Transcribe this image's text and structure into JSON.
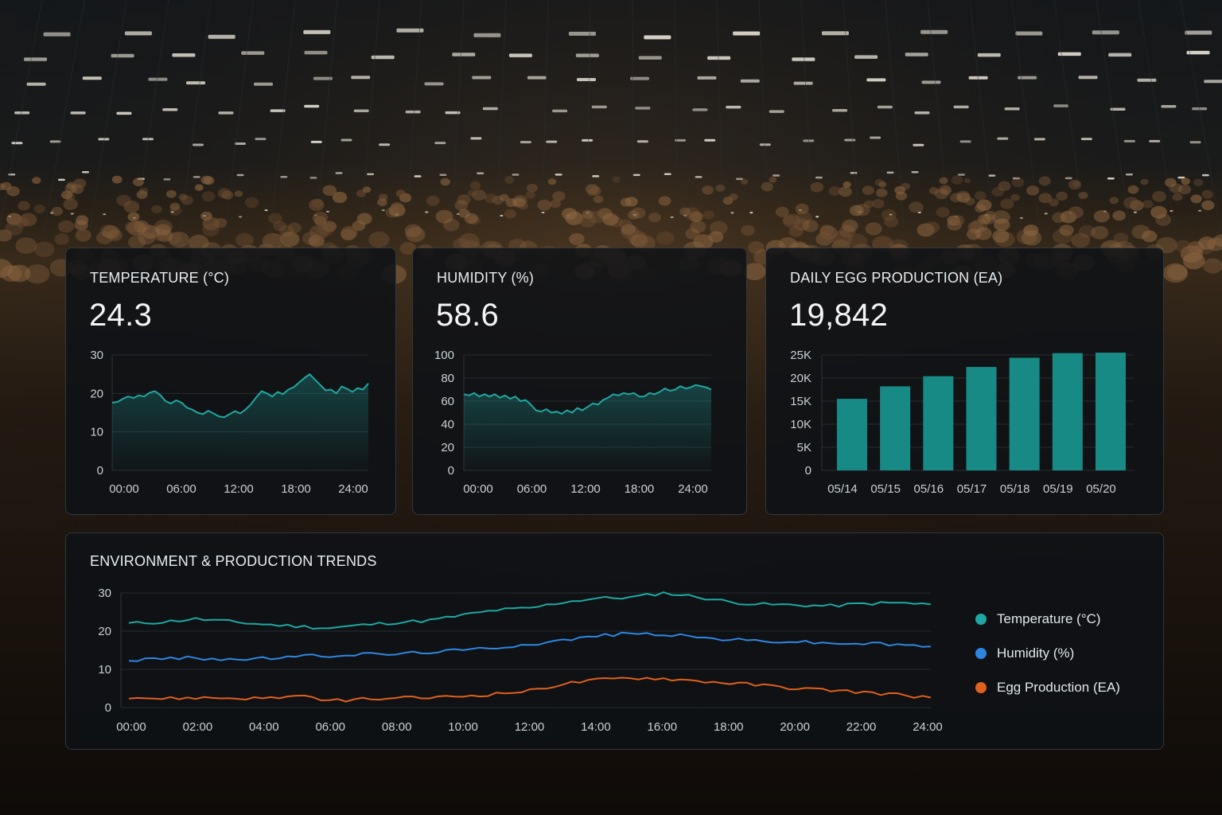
{
  "colors": {
    "teal": "#1fa8a2",
    "bar": "#178a86",
    "blue": "#2f86e0",
    "orange": "#e0601e",
    "grid": "#3a444b"
  },
  "temperature": {
    "title": "TEMPERATURE (°C)",
    "value": "24.3",
    "chart_data": {
      "type": "area",
      "title": "TEMPERATURE (°C)",
      "x_ticks": [
        "00:00",
        "06:00",
        "12:00",
        "18:00",
        "24:00"
      ],
      "y_ticks": [
        "30",
        "20",
        "10",
        "0"
      ],
      "ylim": [
        0,
        30
      ],
      "xlim": [
        0,
        24
      ],
      "series": [
        {
          "name": "Temperature (°C)",
          "x": [
            0,
            0.5,
            1,
            1.5,
            2,
            2.5,
            3,
            3.5,
            4,
            4.5,
            5,
            5.5,
            6,
            6.5,
            7,
            7.5,
            8,
            8.5,
            9,
            9.5,
            10,
            10.5,
            11,
            11.5,
            12,
            12.5,
            13,
            13.5,
            14,
            14.5,
            15,
            15.5,
            16,
            16.5,
            17,
            17.5,
            18,
            18.5,
            19,
            19.5,
            20,
            20.5,
            21,
            21.5,
            22,
            22.5,
            23,
            23.5,
            24
          ],
          "values": [
            17.6,
            17.8,
            18.6,
            19.2,
            18.8,
            19.5,
            19.2,
            20.2,
            20.6,
            19.6,
            18.0,
            17.4,
            18.2,
            17.6,
            16.3,
            15.8,
            15.0,
            14.6,
            15.5,
            14.8,
            14.0,
            13.8,
            14.6,
            15.4,
            14.8,
            15.8,
            17.2,
            19.0,
            20.6,
            20.0,
            19.2,
            20.4,
            19.8,
            21.0,
            21.6,
            22.8,
            24.0,
            25.0,
            23.6,
            22.2,
            20.8,
            21.0,
            20.0,
            21.8,
            21.2,
            20.4,
            21.4,
            21.0,
            22.6
          ]
        }
      ]
    }
  },
  "humidity": {
    "title": "HUMIDITY (%)",
    "value": "58.6",
    "chart_data": {
      "type": "area",
      "title": "HUMIDITY (%)",
      "x_ticks": [
        "00:00",
        "06:00",
        "12:00",
        "18:00",
        "24:00"
      ],
      "y_ticks": [
        "100",
        "80",
        "60",
        "40",
        "20",
        "0"
      ],
      "ylim": [
        0,
        100
      ],
      "xlim": [
        0,
        24
      ],
      "series": [
        {
          "name": "Humidity (%)",
          "x": [
            0,
            0.5,
            1,
            1.5,
            2,
            2.5,
            3,
            3.5,
            4,
            4.5,
            5,
            5.5,
            6,
            6.5,
            7,
            7.5,
            8,
            8.5,
            9,
            9.5,
            10,
            10.5,
            11,
            11.5,
            12,
            12.5,
            13,
            13.5,
            14,
            14.5,
            15,
            15.5,
            16,
            16.5,
            17,
            17.5,
            18,
            18.5,
            19,
            19.5,
            20,
            20.5,
            21,
            21.5,
            22,
            22.5,
            23,
            23.5,
            24
          ],
          "values": [
            66,
            65,
            67,
            64,
            66,
            64,
            66,
            63,
            65,
            62,
            64,
            60,
            61,
            57,
            52,
            51,
            53,
            50,
            51,
            49,
            52,
            50,
            54,
            52,
            55,
            58,
            57,
            61,
            63,
            66,
            65,
            67,
            66,
            67,
            64,
            64,
            67,
            66,
            68,
            71,
            69,
            70,
            73,
            71,
            72,
            74,
            73,
            72,
            70
          ]
        }
      ]
    }
  },
  "eggs": {
    "title": "DAILY EGG PRODUCTION (EA)",
    "value": "19,842",
    "chart_data": {
      "type": "bar",
      "title": "DAILY EGG PRODUCTION (EA)",
      "categories": [
        "05/14",
        "05/15",
        "05/16",
        "05/17",
        "05/18",
        "05/19",
        "05/20"
      ],
      "values": [
        15500,
        18200,
        20400,
        22400,
        24400,
        25400,
        25500
      ],
      "y_ticks": [
        "25K",
        "20K",
        "15K",
        "10K",
        "5K",
        "0"
      ],
      "ylim": [
        0,
        25000
      ]
    }
  },
  "trends": {
    "title": "ENVIRONMENT & PRODUCTION TRENDS",
    "legend": [
      {
        "label": "Temperature (°C)",
        "color": "#1fa8a2"
      },
      {
        "label": "Humidity (%)",
        "color": "#2f86e0"
      },
      {
        "label": "Egg Production (EA)",
        "color": "#e0601e"
      }
    ],
    "chart_data": {
      "type": "line",
      "title": "ENVIRONMENT & PRODUCTION TRENDS",
      "x_ticks": [
        "00:00",
        "02:00",
        "04:00",
        "06:00",
        "08:00",
        "10:00",
        "12:00",
        "14:00",
        "16:00",
        "18:00",
        "20:00",
        "22:00",
        "24:00"
      ],
      "y_ticks": [
        "30",
        "20",
        "10",
        "0"
      ],
      "ylim": [
        0,
        30
      ],
      "xlim": [
        0,
        24
      ],
      "x": [
        0,
        1,
        2,
        3,
        4,
        5,
        6,
        7,
        8,
        9,
        10,
        11,
        12,
        13,
        14,
        15,
        16,
        17,
        18,
        19,
        20,
        21,
        22,
        23,
        24
      ],
      "series": [
        {
          "name": "Temperature (°C)",
          "color": "#1fa8a2",
          "values": [
            22.0,
            22.4,
            23.2,
            22.5,
            21.8,
            21.3,
            20.8,
            21.6,
            22.3,
            22.8,
            24.2,
            25.5,
            26.0,
            27.6,
            28.6,
            28.8,
            30.0,
            29.0,
            27.6,
            27.0,
            26.8,
            26.6,
            27.2,
            27.4,
            27.0
          ]
        },
        {
          "name": "Humidity (%)",
          "color": "#2f86e0",
          "values": [
            12.4,
            12.8,
            13.0,
            12.6,
            12.8,
            13.4,
            13.6,
            14.0,
            14.0,
            14.6,
            15.0,
            15.8,
            16.6,
            17.6,
            18.8,
            19.4,
            19.2,
            18.4,
            17.8,
            17.4,
            17.2,
            16.8,
            16.8,
            16.4,
            16.0
          ]
        },
        {
          "name": "Egg Production (EA)",
          "color": "#e0601e",
          "values": [
            2.8,
            2.3,
            2.6,
            2.5,
            2.4,
            3.0,
            1.8,
            2.2,
            2.4,
            2.6,
            3.0,
            3.6,
            4.4,
            6.2,
            7.2,
            7.8,
            7.6,
            7.0,
            6.4,
            5.8,
            5.0,
            4.6,
            4.0,
            3.4,
            2.6
          ]
        }
      ]
    }
  }
}
